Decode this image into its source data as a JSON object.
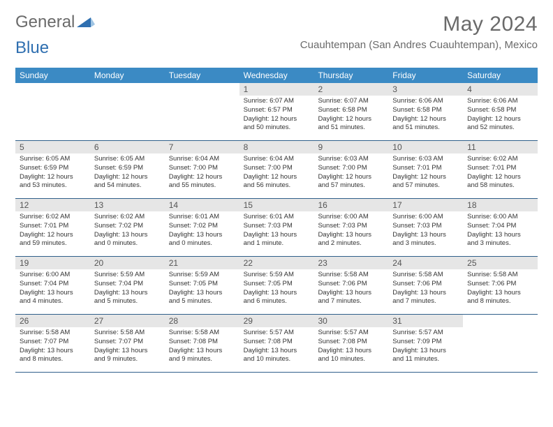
{
  "logo": {
    "text_a": "General",
    "text_b": "Blue",
    "color_a": "#7a7a7a",
    "color_b": "#2f6fb0",
    "triangle_color": "#2f6fb0"
  },
  "title": "May 2024",
  "location": "Cuauhtempan (San Andres Cuauhtempan), Mexico",
  "colors": {
    "header_bg": "#3b8ac4",
    "header_text": "#ffffff",
    "daynum_bg": "#e6e6e6",
    "week_divider": "#2f5f8a",
    "text": "#333333",
    "muted": "#6a6a6a"
  },
  "day_names": [
    "Sunday",
    "Monday",
    "Tuesday",
    "Wednesday",
    "Thursday",
    "Friday",
    "Saturday"
  ],
  "weeks": [
    [
      null,
      null,
      null,
      {
        "n": "1",
        "sr": "6:07 AM",
        "ss": "6:57 PM",
        "dl": "12 hours and 50 minutes."
      },
      {
        "n": "2",
        "sr": "6:07 AM",
        "ss": "6:58 PM",
        "dl": "12 hours and 51 minutes."
      },
      {
        "n": "3",
        "sr": "6:06 AM",
        "ss": "6:58 PM",
        "dl": "12 hours and 51 minutes."
      },
      {
        "n": "4",
        "sr": "6:06 AM",
        "ss": "6:58 PM",
        "dl": "12 hours and 52 minutes."
      }
    ],
    [
      {
        "n": "5",
        "sr": "6:05 AM",
        "ss": "6:59 PM",
        "dl": "12 hours and 53 minutes."
      },
      {
        "n": "6",
        "sr": "6:05 AM",
        "ss": "6:59 PM",
        "dl": "12 hours and 54 minutes."
      },
      {
        "n": "7",
        "sr": "6:04 AM",
        "ss": "7:00 PM",
        "dl": "12 hours and 55 minutes."
      },
      {
        "n": "8",
        "sr": "6:04 AM",
        "ss": "7:00 PM",
        "dl": "12 hours and 56 minutes."
      },
      {
        "n": "9",
        "sr": "6:03 AM",
        "ss": "7:00 PM",
        "dl": "12 hours and 57 minutes."
      },
      {
        "n": "10",
        "sr": "6:03 AM",
        "ss": "7:01 PM",
        "dl": "12 hours and 57 minutes."
      },
      {
        "n": "11",
        "sr": "6:02 AM",
        "ss": "7:01 PM",
        "dl": "12 hours and 58 minutes."
      }
    ],
    [
      {
        "n": "12",
        "sr": "6:02 AM",
        "ss": "7:01 PM",
        "dl": "12 hours and 59 minutes."
      },
      {
        "n": "13",
        "sr": "6:02 AM",
        "ss": "7:02 PM",
        "dl": "13 hours and 0 minutes."
      },
      {
        "n": "14",
        "sr": "6:01 AM",
        "ss": "7:02 PM",
        "dl": "13 hours and 0 minutes."
      },
      {
        "n": "15",
        "sr": "6:01 AM",
        "ss": "7:03 PM",
        "dl": "13 hours and 1 minute."
      },
      {
        "n": "16",
        "sr": "6:00 AM",
        "ss": "7:03 PM",
        "dl": "13 hours and 2 minutes."
      },
      {
        "n": "17",
        "sr": "6:00 AM",
        "ss": "7:03 PM",
        "dl": "13 hours and 3 minutes."
      },
      {
        "n": "18",
        "sr": "6:00 AM",
        "ss": "7:04 PM",
        "dl": "13 hours and 3 minutes."
      }
    ],
    [
      {
        "n": "19",
        "sr": "6:00 AM",
        "ss": "7:04 PM",
        "dl": "13 hours and 4 minutes."
      },
      {
        "n": "20",
        "sr": "5:59 AM",
        "ss": "7:04 PM",
        "dl": "13 hours and 5 minutes."
      },
      {
        "n": "21",
        "sr": "5:59 AM",
        "ss": "7:05 PM",
        "dl": "13 hours and 5 minutes."
      },
      {
        "n": "22",
        "sr": "5:59 AM",
        "ss": "7:05 PM",
        "dl": "13 hours and 6 minutes."
      },
      {
        "n": "23",
        "sr": "5:58 AM",
        "ss": "7:06 PM",
        "dl": "13 hours and 7 minutes."
      },
      {
        "n": "24",
        "sr": "5:58 AM",
        "ss": "7:06 PM",
        "dl": "13 hours and 7 minutes."
      },
      {
        "n": "25",
        "sr": "5:58 AM",
        "ss": "7:06 PM",
        "dl": "13 hours and 8 minutes."
      }
    ],
    [
      {
        "n": "26",
        "sr": "5:58 AM",
        "ss": "7:07 PM",
        "dl": "13 hours and 8 minutes."
      },
      {
        "n": "27",
        "sr": "5:58 AM",
        "ss": "7:07 PM",
        "dl": "13 hours and 9 minutes."
      },
      {
        "n": "28",
        "sr": "5:58 AM",
        "ss": "7:08 PM",
        "dl": "13 hours and 9 minutes."
      },
      {
        "n": "29",
        "sr": "5:57 AM",
        "ss": "7:08 PM",
        "dl": "13 hours and 10 minutes."
      },
      {
        "n": "30",
        "sr": "5:57 AM",
        "ss": "7:08 PM",
        "dl": "13 hours and 10 minutes."
      },
      {
        "n": "31",
        "sr": "5:57 AM",
        "ss": "7:09 PM",
        "dl": "13 hours and 11 minutes."
      },
      null
    ]
  ],
  "labels": {
    "sunrise": "Sunrise:",
    "sunset": "Sunset:",
    "daylight": "Daylight:"
  }
}
